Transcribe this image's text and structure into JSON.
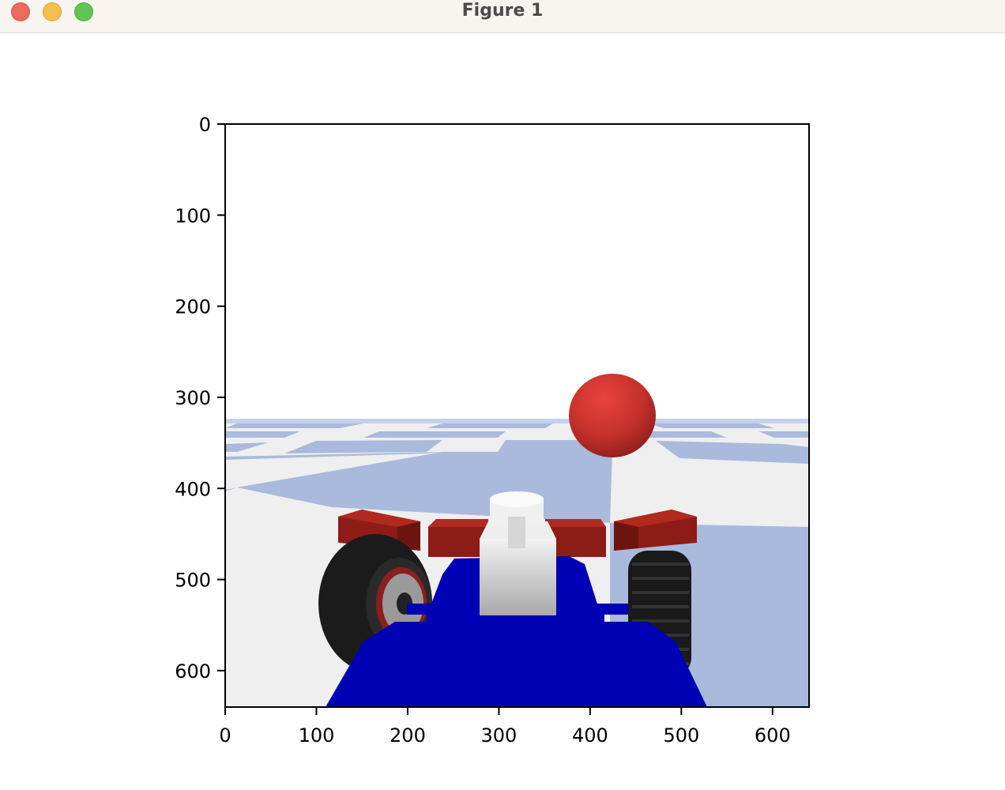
{
  "window": {
    "title": "Figure 1",
    "controls": [
      "close",
      "minimize",
      "maximize"
    ],
    "accent_colors": {
      "close": "#ed6a5e",
      "minimize": "#f5bf4f",
      "maximize": "#61c554"
    }
  },
  "chart_data": {
    "type": "image",
    "title": "",
    "xlabel": "",
    "ylabel": "",
    "xlim": [
      0,
      640
    ],
    "ylim": [
      640,
      0
    ],
    "xticks": [
      0,
      100,
      200,
      300,
      400,
      500,
      600
    ],
    "yticks": [
      0,
      100,
      200,
      300,
      400,
      500,
      600
    ],
    "grid": false,
    "image_content": {
      "scene": "3D render of blue car chassis with white sensor and red bumpers on checkered light-blue/grey floor, red sphere ahead",
      "colors": {
        "sky": "#ffffff",
        "floor_light": "#efefef",
        "floor_tile": "#a9badc",
        "chassis": "#0000b4",
        "bumper": "#8e1c16",
        "sphere": "#c8302b",
        "sensor": "#e4e4e4",
        "tire": "#1b1b1b"
      }
    }
  }
}
